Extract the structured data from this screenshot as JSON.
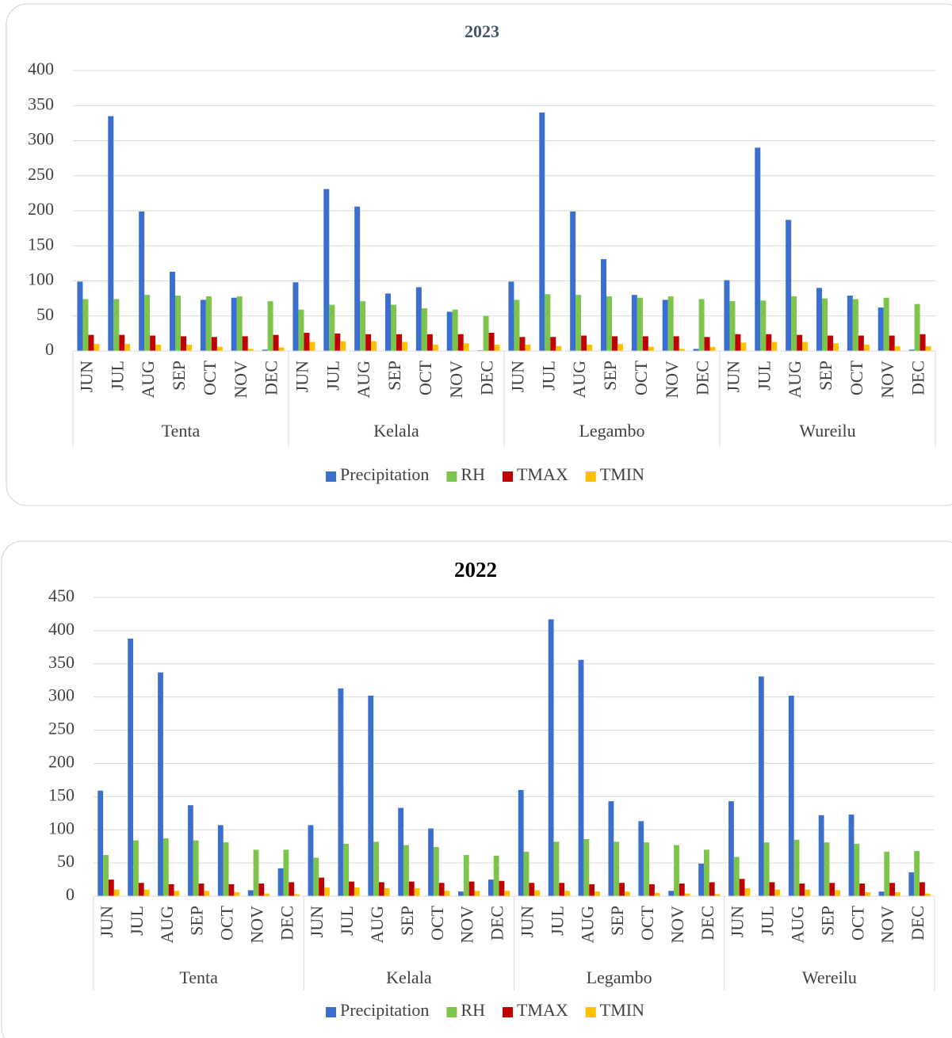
{
  "chart_data": [
    {
      "type": "bar",
      "title": "2023",
      "grid": true,
      "legend": "bottom",
      "ylim": [
        0,
        400
      ],
      "yticks": [
        0,
        50,
        100,
        150,
        200,
        250,
        300,
        350,
        400
      ],
      "groups": [
        "Tenta",
        "Kelala",
        "Legambo",
        "Wureilu"
      ],
      "categories": [
        "JUN",
        "JUL",
        "AUG",
        "SEP",
        "OCT",
        "NOV",
        "DEC",
        "JUN",
        "JUL",
        "AUG",
        "SEP",
        "OCT",
        "NOV",
        "DEC",
        "JUN",
        "JUL",
        "AUG",
        "SEP",
        "OCT",
        "NOV",
        "DEC",
        "JUN",
        "JUL",
        "AUG",
        "SEP",
        "OCT",
        "NOV",
        "DEC"
      ],
      "series": [
        {
          "name": "Precipitation",
          "color": "#3a6fd0",
          "values": [
            99,
            335,
            199,
            113,
            73,
            76,
            2,
            98,
            231,
            206,
            82,
            91,
            56,
            1,
            99,
            340,
            199,
            131,
            80,
            73,
            3,
            101,
            290,
            187,
            90,
            79,
            62,
            2
          ]
        },
        {
          "name": "RH",
          "color": "#7cc54a",
          "values": [
            74,
            74,
            80,
            79,
            78,
            78,
            71,
            59,
            66,
            71,
            66,
            61,
            59,
            50,
            73,
            81,
            80,
            78,
            76,
            78,
            74,
            71,
            72,
            78,
            75,
            74,
            76,
            67
          ]
        },
        {
          "name": "TMAX",
          "color": "#c00000",
          "values": [
            23,
            23,
            22,
            21,
            20,
            21,
            23,
            26,
            25,
            24,
            24,
            24,
            24,
            26,
            20,
            20,
            22,
            21,
            21,
            21,
            20,
            24,
            24,
            23,
            22,
            22,
            22,
            24
          ]
        },
        {
          "name": "TMIN",
          "color": "#ffc000",
          "values": [
            10,
            10,
            9,
            9,
            6,
            3,
            5,
            13,
            14,
            14,
            13,
            9,
            11,
            9,
            9,
            7,
            9,
            10,
            6,
            3,
            6,
            12,
            13,
            13,
            11,
            9,
            7,
            7
          ]
        }
      ]
    },
    {
      "type": "bar",
      "title": "2022",
      "grid": true,
      "legend": "bottom",
      "ylim": [
        0,
        450
      ],
      "yticks": [
        0,
        50,
        100,
        150,
        200,
        250,
        300,
        350,
        400,
        450
      ],
      "groups": [
        "Tenta",
        "Kelala",
        "Legambo",
        "Wereilu"
      ],
      "categories": [
        "JUN",
        "JUL",
        "AUG",
        "SEP",
        "OCT",
        "NOV",
        "DEC",
        "JUN",
        "JUL",
        "AUG",
        "SEP",
        "OCT",
        "NOV",
        "DEC",
        "JUN",
        "JUL",
        "AUG",
        "SEP",
        "OCT",
        "NOV",
        "DEC",
        "JUN",
        "JUL",
        "AUG",
        "SEP",
        "OCT",
        "NOV",
        "DEC"
      ],
      "series": [
        {
          "name": "Precipitation",
          "color": "#3a6fd0",
          "values": [
            159,
            388,
            337,
            137,
            107,
            9,
            42,
            107,
            313,
            302,
            133,
            102,
            7,
            25,
            160,
            417,
            356,
            143,
            113,
            8,
            49,
            143,
            331,
            302,
            122,
            123,
            7,
            36
          ]
        },
        {
          "name": "RH",
          "color": "#7cc54a",
          "values": [
            62,
            84,
            87,
            84,
            81,
            70,
            70,
            58,
            79,
            82,
            77,
            74,
            62,
            61,
            67,
            82,
            86,
            82,
            81,
            77,
            70,
            59,
            81,
            85,
            81,
            79,
            67,
            68
          ]
        },
        {
          "name": "TMAX",
          "color": "#c00000",
          "values": [
            25,
            20,
            18,
            19,
            18,
            19,
            21,
            28,
            22,
            21,
            22,
            20,
            22,
            23,
            20,
            20,
            18,
            20,
            18,
            19,
            21,
            26,
            21,
            19,
            20,
            19,
            20,
            21
          ]
        },
        {
          "name": "TMIN",
          "color": "#ffc000",
          "values": [
            10,
            10,
            8,
            8,
            6,
            4,
            3,
            13,
            13,
            12,
            12,
            8,
            8,
            8,
            9,
            8,
            7,
            7,
            5,
            4,
            3,
            12,
            10,
            10,
            9,
            6,
            6,
            4
          ]
        }
      ]
    }
  ]
}
